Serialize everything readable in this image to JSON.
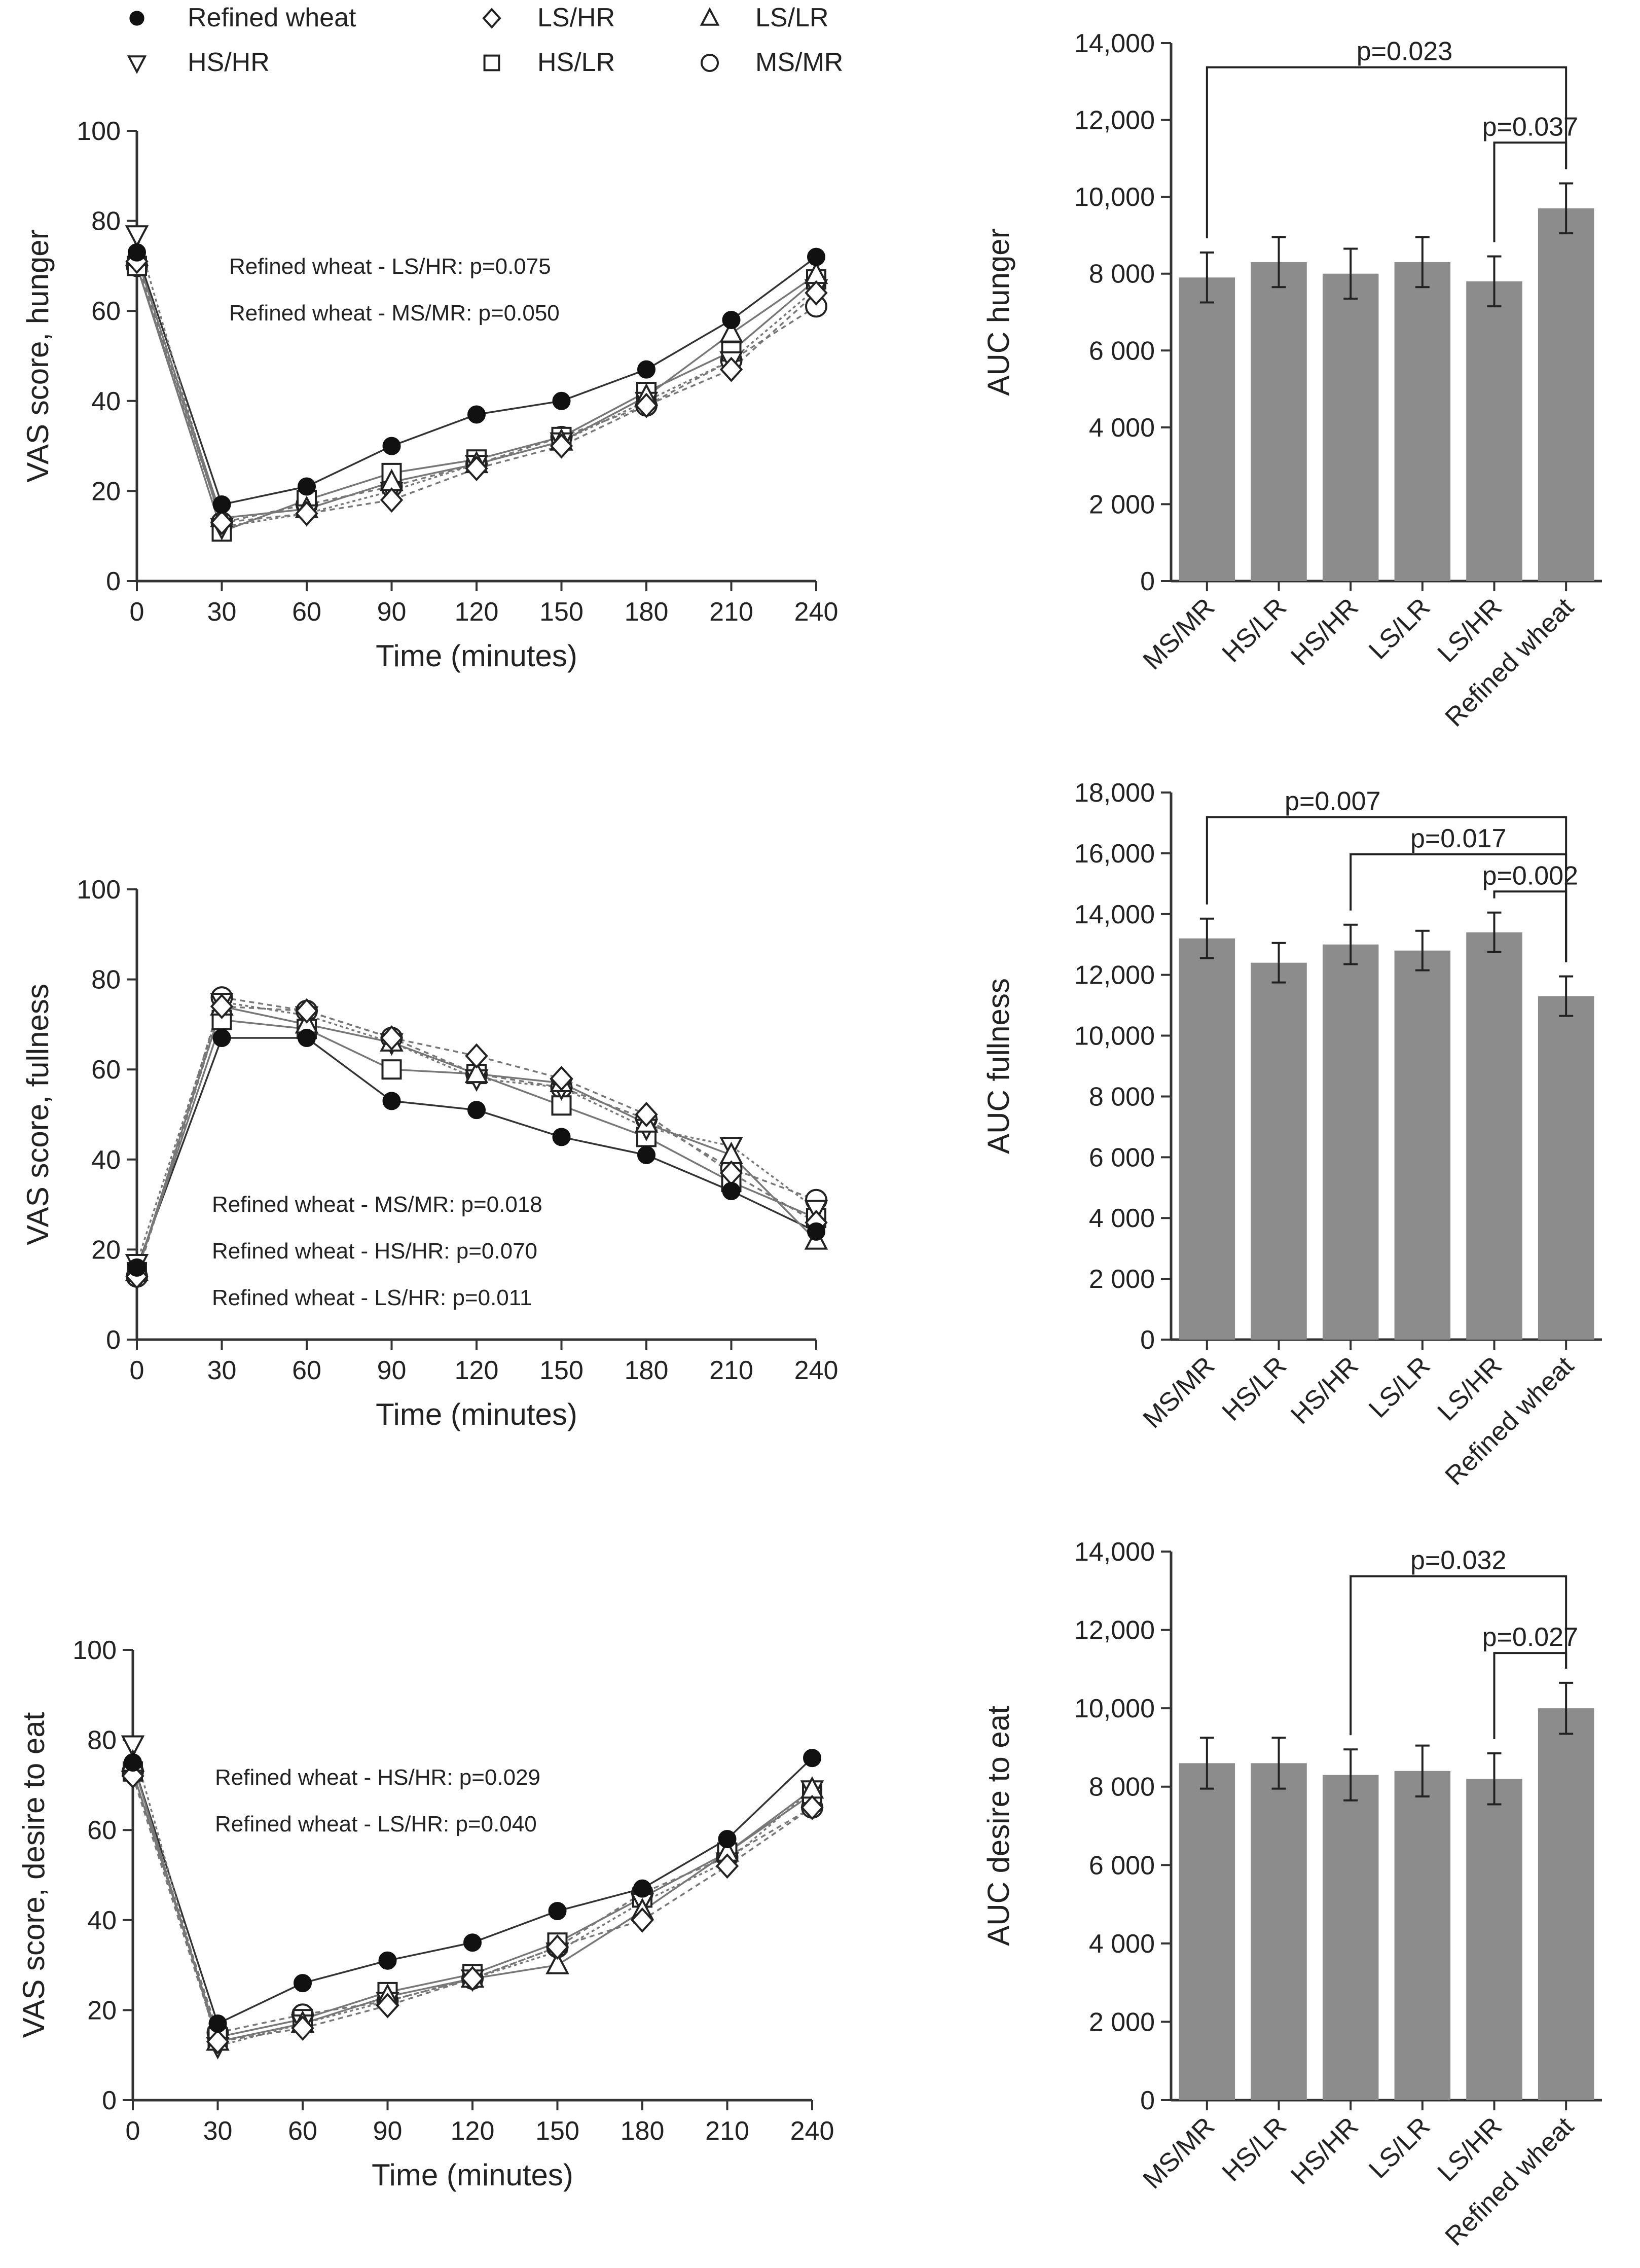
{
  "legend": [
    {
      "name": "Refined wheat",
      "marker": "filled-circle"
    },
    {
      "name": "LS/HR",
      "marker": "diamond"
    },
    {
      "name": "LS/LR",
      "marker": "triangle-up"
    },
    {
      "name": "HS/HR",
      "marker": "triangle-down"
    },
    {
      "name": "HS/LR",
      "marker": "square"
    },
    {
      "name": "MS/MR",
      "marker": "open-circle"
    }
  ],
  "colors": {
    "bar": "#8c8c8c",
    "axis": "#333333",
    "line": "#555555"
  },
  "chart_data": [
    {
      "type": "line",
      "x": [
        0,
        30,
        60,
        90,
        120,
        150,
        180,
        210,
        240
      ],
      "xlabel": "Time (minutes)",
      "ylabel": "VAS score, hunger",
      "ylim": [
        0,
        100
      ],
      "yticks": [
        0,
        20,
        40,
        60,
        80,
        100
      ],
      "annotations": [
        "Refined wheat - LS/HR: p=0.075",
        "Refined wheat - MS/MR: p=0.050"
      ],
      "series": [
        {
          "name": "Refined wheat",
          "values": [
            73,
            17,
            21,
            30,
            37,
            40,
            47,
            58,
            72
          ]
        },
        {
          "name": "LS/HR",
          "values": [
            71,
            13,
            15,
            18,
            25,
            30,
            39,
            47,
            64
          ]
        },
        {
          "name": "LS/LR",
          "values": [
            72,
            14,
            16,
            22,
            26,
            31,
            41,
            55,
            68
          ]
        },
        {
          "name": "HS/HR",
          "values": [
            77,
            12,
            15,
            20,
            26,
            31,
            40,
            49,
            65
          ]
        },
        {
          "name": "HS/LR",
          "values": [
            70,
            11,
            18,
            24,
            27,
            32,
            42,
            51,
            67
          ]
        },
        {
          "name": "MS/MR",
          "values": [
            70,
            13,
            17,
            21,
            26,
            32,
            39,
            49,
            61
          ]
        }
      ]
    },
    {
      "type": "bar",
      "categories": [
        "MS/MR",
        "HS/LR",
        "HS/HR",
        "LS/LR",
        "LS/HR",
        "Refined wheat"
      ],
      "values": [
        7900,
        8300,
        8000,
        8300,
        7800,
        9700
      ],
      "errors": [
        650,
        650,
        650,
        650,
        650,
        650
      ],
      "ylabel": "AUC hunger",
      "ylim": [
        0,
        14000
      ],
      "yticks": [
        "0",
        "2 000",
        "4 000",
        "6 000",
        "8 000",
        "10,000",
        "12,000",
        "14,000"
      ],
      "significance": [
        {
          "label": "p=0.023",
          "from": "MS/MR",
          "to": "Refined wheat"
        },
        {
          "label": "p=0.037",
          "from": "LS/HR",
          "to": "Refined wheat"
        }
      ]
    },
    {
      "type": "line",
      "x": [
        0,
        30,
        60,
        90,
        120,
        150,
        180,
        210,
        240
      ],
      "xlabel": "Time (minutes)",
      "ylabel": "VAS score, fullness",
      "ylim": [
        0,
        100
      ],
      "yticks": [
        0,
        20,
        40,
        60,
        80,
        100
      ],
      "annotations": [
        "Refined wheat - MS/MR: p=0.018",
        "Refined wheat - HS/HR: p=0.070",
        "Refined wheat - LS/HR: p=0.011"
      ],
      "series": [
        {
          "name": "Refined wheat",
          "values": [
            16,
            67,
            67,
            53,
            51,
            45,
            41,
            33,
            24
          ]
        },
        {
          "name": "LS/HR",
          "values": [
            14,
            74,
            73,
            67,
            63,
            58,
            50,
            37,
            26
          ]
        },
        {
          "name": "LS/LR",
          "values": [
            15,
            74,
            70,
            66,
            59,
            57,
            48,
            41,
            22
          ]
        },
        {
          "name": "HS/HR",
          "values": [
            17,
            75,
            72,
            66,
            58,
            56,
            47,
            43,
            29
          ]
        },
        {
          "name": "HS/LR",
          "values": [
            15,
            71,
            69,
            60,
            59,
            52,
            45,
            35,
            27
          ]
        },
        {
          "name": "MS/MR",
          "values": [
            14,
            76,
            73,
            67,
            59,
            56,
            49,
            38,
            31
          ]
        }
      ]
    },
    {
      "type": "bar",
      "categories": [
        "MS/MR",
        "HS/LR",
        "HS/HR",
        "LS/LR",
        "LS/HR",
        "Refined wheat"
      ],
      "values": [
        13200,
        12400,
        13000,
        12800,
        13400,
        11300
      ],
      "errors": [
        650,
        650,
        650,
        650,
        650,
        650
      ],
      "ylabel": "AUC fullness",
      "ylim": [
        0,
        18000
      ],
      "yticks": [
        "0",
        "2 000",
        "4 000",
        "6 000",
        "8 000",
        "10,000",
        "12,000",
        "14,000",
        "16,000",
        "18,000"
      ],
      "significance": [
        {
          "label": "p=0.007",
          "from": "MS/MR",
          "to": "Refined wheat"
        },
        {
          "label": "p=0.017",
          "from": "HS/HR",
          "to": "Refined wheat"
        },
        {
          "label": "p=0.002",
          "from": "LS/HR",
          "to": "Refined wheat"
        }
      ]
    },
    {
      "type": "line",
      "x": [
        0,
        30,
        60,
        90,
        120,
        150,
        180,
        210,
        240
      ],
      "xlabel": "Time (minutes)",
      "ylabel": "VAS score, desire to eat",
      "ylim": [
        0,
        100
      ],
      "yticks": [
        0,
        20,
        40,
        60,
        80,
        100
      ],
      "annotations": [
        "Refined wheat - HS/HR: p=0.029",
        "Refined wheat - LS/HR: p=0.040"
      ],
      "series": [
        {
          "name": "Refined wheat",
          "values": [
            75,
            17,
            26,
            31,
            35,
            42,
            47,
            58,
            76
          ]
        },
        {
          "name": "LS/HR",
          "values": [
            72,
            13,
            16,
            21,
            27,
            34,
            40,
            52,
            65
          ]
        },
        {
          "name": "LS/LR",
          "values": [
            75,
            13,
            17,
            23,
            27,
            30,
            42,
            55,
            69
          ]
        },
        {
          "name": "HS/HR",
          "values": [
            79,
            12,
            17,
            22,
            27,
            33,
            44,
            53,
            69
          ]
        },
        {
          "name": "HS/LR",
          "values": [
            73,
            14,
            18,
            24,
            28,
            35,
            45,
            55,
            68
          ]
        },
        {
          "name": "MS/MR",
          "values": [
            73,
            15,
            19,
            22,
            27,
            34,
            46,
            54,
            65
          ]
        }
      ]
    },
    {
      "type": "bar",
      "categories": [
        "MS/MR",
        "HS/LR",
        "HS/HR",
        "LS/LR",
        "LS/HR",
        "Refined wheat"
      ],
      "values": [
        8600,
        8600,
        8300,
        8400,
        8200,
        10000
      ],
      "errors": [
        650,
        650,
        650,
        650,
        650,
        650
      ],
      "ylabel": "AUC desire to eat",
      "ylim": [
        0,
        14000
      ],
      "yticks": [
        "0",
        "2 000",
        "4 000",
        "6 000",
        "8 000",
        "10,000",
        "12,000",
        "14,000"
      ],
      "significance": [
        {
          "label": "p=0.032",
          "from": "HS/HR",
          "to": "Refined wheat"
        },
        {
          "label": "p=0.027",
          "from": "LS/HR",
          "to": "Refined wheat"
        }
      ]
    }
  ]
}
